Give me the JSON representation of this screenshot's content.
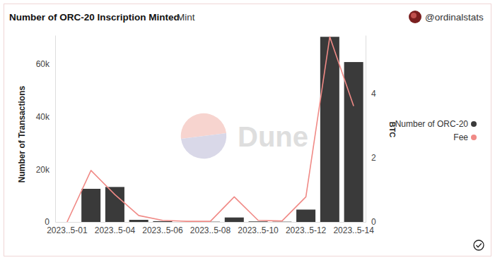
{
  "chart_data": {
    "type": "bar",
    "title": "Number of ORC-20 Inscription Minted",
    "subtitle": "Mint",
    "source": "@ordinalstats",
    "watermark": "Dune",
    "y_label": "Number of Transactions",
    "y2_label": "BTC",
    "categories": [
      "2023..5-01",
      null,
      "2023..5-04",
      null,
      "2023..5-06",
      null,
      "2023..5-08",
      null,
      "2023..5-10",
      null,
      "2023..5-12",
      null,
      "2023..5-14"
    ],
    "series": [
      {
        "name": "Number of ORC-20",
        "type": "bar",
        "color": "#3a3a3a",
        "values": [
          0,
          12600,
          13300,
          800,
          300,
          0,
          100,
          1700,
          200,
          100,
          4700,
          70400,
          60800
        ]
      },
      {
        "name": "Fee",
        "type": "line",
        "axis": "y2",
        "color": "#f08a86",
        "values": [
          0,
          1.6,
          0.85,
          0.2,
          0.05,
          0.02,
          0.02,
          0.78,
          0.05,
          0.03,
          0.78,
          5.75,
          3.6
        ]
      }
    ],
    "ylim": [
      0,
      71000
    ],
    "yticks": [
      0,
      {
        "value": 20000,
        "label": "20k"
      },
      {
        "value": 40000,
        "label": "40k"
      },
      {
        "value": 60000,
        "label": "60k"
      }
    ],
    "y2lim": [
      0,
      5.8
    ],
    "y2ticks": [
      0,
      2,
      4
    ],
    "grid": false,
    "legend": "right"
  }
}
